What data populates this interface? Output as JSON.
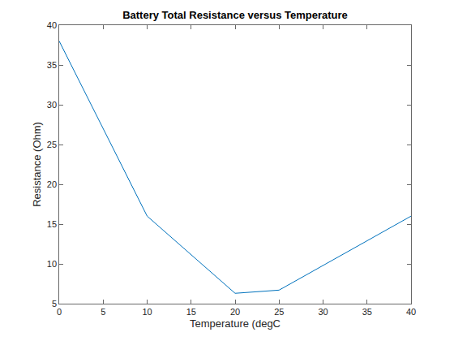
{
  "chart_data": {
    "type": "line",
    "title": "Battery Total Resistance versus Temperature",
    "x_label": "Temperature (degC",
    "y_label": "Resistance (Ohm)",
    "x": [
      0,
      10,
      20,
      25,
      40
    ],
    "values": [
      38,
      16,
      6.3,
      6.7,
      16
    ],
    "color": "#0072bd",
    "xlim": [
      0,
      40
    ],
    "xticks": [
      0,
      5,
      10,
      15,
      20,
      25,
      30,
      35,
      40
    ],
    "ylim": [
      5,
      40
    ],
    "yticks": [
      5,
      10,
      15,
      20,
      25,
      30,
      35,
      40
    ],
    "grid": false
  }
}
